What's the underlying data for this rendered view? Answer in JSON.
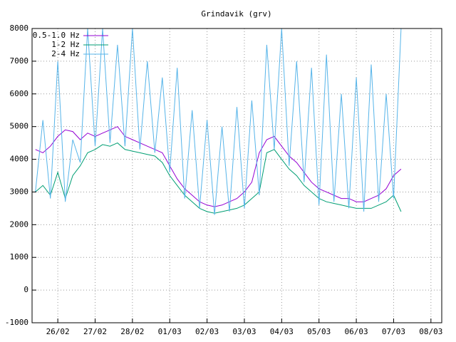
{
  "chart_data": {
    "type": "line",
    "title": "Grindavik (grv)",
    "x": [
      -0.6,
      -0.4,
      -0.2,
      0.0,
      0.2,
      0.4,
      0.6,
      0.8,
      1.0,
      1.2,
      1.4,
      1.6,
      1.8,
      2.0,
      2.2,
      2.4,
      2.6,
      2.8,
      3.0,
      3.2,
      3.4,
      3.6,
      3.8,
      4.0,
      4.2,
      4.4,
      4.6,
      4.8,
      5.0,
      5.2,
      5.4,
      5.6,
      5.8,
      6.0,
      6.2,
      6.4,
      6.6,
      6.8,
      7.0,
      7.2,
      7.4,
      7.6,
      7.8,
      8.0,
      8.2,
      8.4,
      8.6,
      8.8,
      9.0,
      9.2
    ],
    "series": [
      {
        "name": "0.5-1.0 Hz",
        "color": "#9400d3",
        "values": [
          4300,
          4200,
          4400,
          4700,
          4900,
          4850,
          4600,
          4800,
          4700,
          4800,
          4900,
          5000,
          4700,
          4600,
          4500,
          4400,
          4300,
          4200,
          3800,
          3400,
          3100,
          2900,
          2700,
          2600,
          2550,
          2600,
          2700,
          2800,
          3000,
          3300,
          4200,
          4600,
          4700,
          4400,
          4100,
          3900,
          3600,
          3300,
          3100,
          3000,
          2900,
          2800,
          2800,
          2700,
          2700,
          2800,
          2900,
          3100,
          3500,
          3700
        ]
      },
      {
        "name": "1-2 Hz",
        "color": "#009e73",
        "values": [
          3000,
          3200,
          2900,
          3600,
          2800,
          3500,
          3800,
          4200,
          4300,
          4450,
          4400,
          4500,
          4300,
          4250,
          4200,
          4150,
          4100,
          3900,
          3500,
          3200,
          2900,
          2700,
          2500,
          2400,
          2350,
          2400,
          2450,
          2500,
          2600,
          2800,
          3000,
          4200,
          4300,
          4000,
          3700,
          3500,
          3200,
          3000,
          2800,
          2700,
          2650,
          2600,
          2550,
          2500,
          2500,
          2500,
          2600,
          2700,
          2900,
          2400
        ]
      },
      {
        "name": "2-4 Hz",
        "color": "#56b4e9",
        "values": [
          3000,
          5200,
          2800,
          7000,
          2700,
          4600,
          3900,
          8000,
          4400,
          8000,
          4500,
          7500,
          4400,
          8000,
          4300,
          7000,
          4200,
          6500,
          3600,
          6800,
          2800,
          5500,
          2500,
          5200,
          2300,
          5000,
          2400,
          5600,
          2500,
          5800,
          2900,
          7500,
          4300,
          8000,
          3800,
          7000,
          3300,
          6800,
          2600,
          7200,
          2700,
          6000,
          2500,
          6500,
          2400,
          6900,
          2700,
          6000,
          2800,
          8000
        ]
      }
    ],
    "xlim": [
      -0.69,
      10.29
    ],
    "xticks": [
      {
        "value": 0,
        "label": "26/02"
      },
      {
        "value": 1,
        "label": "27/02"
      },
      {
        "value": 2,
        "label": "28/02"
      },
      {
        "value": 3,
        "label": "01/03"
      },
      {
        "value": 4,
        "label": "02/03"
      },
      {
        "value": 5,
        "label": "03/03"
      },
      {
        "value": 6,
        "label": "04/03"
      },
      {
        "value": 7,
        "label": "05/03"
      },
      {
        "value": 8,
        "label": "06/03"
      },
      {
        "value": 9,
        "label": "07/03"
      },
      {
        "value": 10,
        "label": "08/03"
      }
    ],
    "ylim": [
      -1000,
      8000
    ],
    "yticks": [
      -1000,
      0,
      1000,
      2000,
      3000,
      4000,
      5000,
      6000,
      7000,
      8000
    ],
    "grid": true,
    "legend": "top-left"
  }
}
